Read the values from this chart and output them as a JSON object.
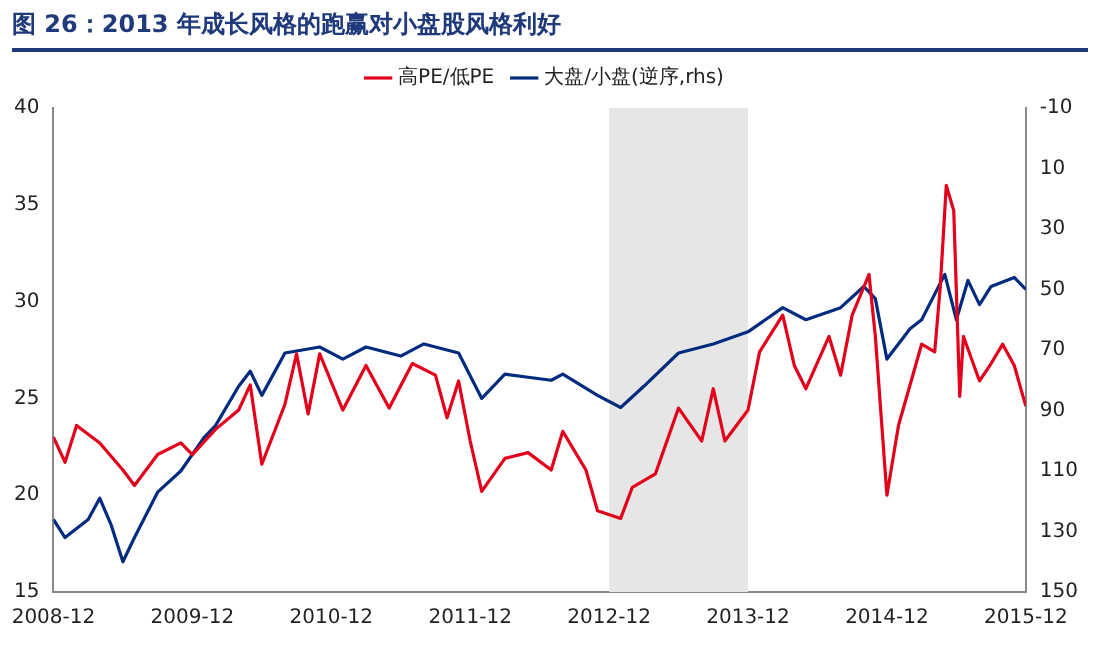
{
  "chart_data": {
    "type": "line",
    "title": "图 26：2013 年成长风格的跑赢对小盘股风格利好",
    "series": [
      {
        "name": "高PE/低PE",
        "color": "#e3001b",
        "axis": "y",
        "x": [
          "2008-12-01",
          "2009-01-01",
          "2009-02-01",
          "2009-04-01",
          "2009-06-01",
          "2009-07-01",
          "2009-09-01",
          "2009-11-01",
          "2009-12-01",
          "2010-02-01",
          "2010-04-01",
          "2010-05-01",
          "2010-06-01",
          "2010-08-01",
          "2010-09-01",
          "2010-10-01",
          "2010-11-01",
          "2011-01-01",
          "2011-03-01",
          "2011-05-01",
          "2011-07-01",
          "2011-09-01",
          "2011-10-01",
          "2011-11-01",
          "2011-12-01",
          "2012-01-01",
          "2012-03-01",
          "2012-05-01",
          "2012-07-01",
          "2012-08-01",
          "2012-10-01",
          "2012-11-01",
          "2013-01-01",
          "2013-02-01",
          "2013-04-01",
          "2013-06-01",
          "2013-08-01",
          "2013-09-01",
          "2013-10-01",
          "2013-12-01",
          "2014-01-01",
          "2014-03-01",
          "2014-04-01",
          "2014-05-01",
          "2014-07-01",
          "2014-08-01",
          "2014-09-01",
          "2014-10-15",
          "2014-11-01",
          "2014-12-01",
          "2015-01-01",
          "2015-03-01",
          "2015-04-05",
          "2015-04-20",
          "2015-05-05",
          "2015-05-25",
          "2015-06-10",
          "2015-06-20",
          "2015-08-01",
          "2015-09-01",
          "2015-10-01",
          "2015-11-01",
          "2015-12-01"
        ],
        "values": [
          23.0,
          21.7,
          23.6,
          22.7,
          21.3,
          20.5,
          22.1,
          22.7,
          22.1,
          23.4,
          24.4,
          25.7,
          21.6,
          24.7,
          27.3,
          24.2,
          27.3,
          24.4,
          26.7,
          24.5,
          26.8,
          26.2,
          24.0,
          25.9,
          22.8,
          20.2,
          21.9,
          22.2,
          21.3,
          23.3,
          21.3,
          19.2,
          18.8,
          20.4,
          21.1,
          24.5,
          22.8,
          25.5,
          22.8,
          24.4,
          27.4,
          29.3,
          26.7,
          25.5,
          28.2,
          26.2,
          29.3,
          31.4,
          28.2,
          20.0,
          23.6,
          27.8,
          27.4,
          30.8,
          36.0,
          34.7,
          25.1,
          28.2,
          25.9,
          26.8,
          27.8,
          26.7,
          24.6
        ]
      },
      {
        "name": "大盘/小盘(逆序,rhs)",
        "color": "#002b7f",
        "axis": "y2",
        "x": [
          "2008-12-01",
          "2009-01-01",
          "2009-03-01",
          "2009-04-01",
          "2009-05-01",
          "2009-06-01",
          "2009-07-01",
          "2009-09-01",
          "2009-11-01",
          "2010-01-01",
          "2010-02-01",
          "2010-04-01",
          "2010-05-01",
          "2010-06-01",
          "2010-08-01",
          "2010-11-01",
          "2011-01-01",
          "2011-03-01",
          "2011-06-01",
          "2011-08-01",
          "2011-11-01",
          "2012-01-01",
          "2012-03-01",
          "2012-05-01",
          "2012-07-01",
          "2012-08-01",
          "2012-11-01",
          "2013-01-01",
          "2013-03-01",
          "2013-06-01",
          "2013-09-01",
          "2013-12-01",
          "2014-03-01",
          "2014-05-01",
          "2014-08-01",
          "2014-10-01",
          "2014-11-01",
          "2014-12-01",
          "2015-02-01",
          "2015-03-01",
          "2015-05-01",
          "2015-06-01",
          "2015-07-01",
          "2015-08-01",
          "2015-09-01",
          "2015-11-01",
          "2015-12-01"
        ],
        "values": [
          126,
          132,
          126,
          119,
          128,
          140,
          132,
          117,
          110,
          99,
          95,
          82,
          77,
          85,
          71,
          69,
          73,
          69,
          72,
          68,
          71,
          86,
          78,
          79,
          80,
          78,
          85,
          89,
          82,
          71,
          68,
          64,
          56,
          60,
          56,
          49,
          53,
          73,
          63,
          60,
          45,
          60,
          47,
          55,
          49,
          46,
          50
        ]
      }
    ],
    "xlim": [
      "2008-12",
      "2015-12"
    ],
    "xticks": [
      "2008-12",
      "2009-12",
      "2010-12",
      "2011-12",
      "2012-12",
      "2013-12",
      "2014-12",
      "2015-12"
    ],
    "ylim": [
      15,
      40
    ],
    "yticks": [
      15,
      20,
      25,
      30,
      35,
      40
    ],
    "y2lim": [
      150,
      -10
    ],
    "y2ticks": [
      -10,
      10,
      30,
      50,
      70,
      90,
      110,
      130,
      150
    ],
    "bands": [
      {
        "axis": "x",
        "from": "2012-12",
        "to": "2013-12",
        "color": "#e6e6e6"
      }
    ],
    "legend": "top",
    "grid": false
  }
}
